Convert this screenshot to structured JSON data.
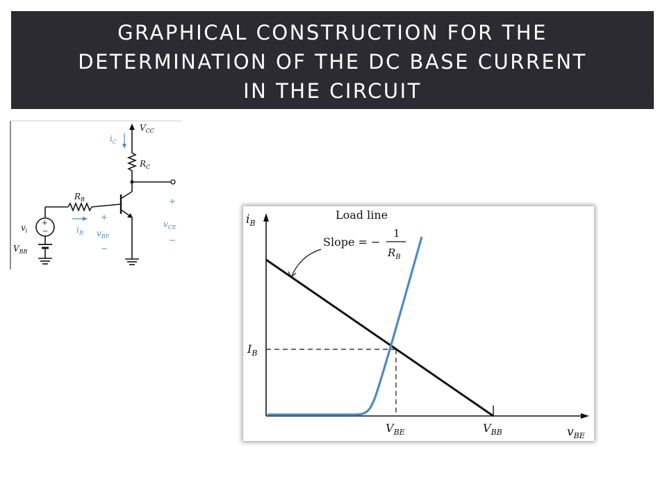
{
  "title": {
    "line1": "GRAPHICAL CONSTRUCTION FOR THE",
    "line2": "DETERMINATION OF THE DC BASE CURRENT",
    "line3": "IN THE CIRCUIT"
  },
  "colors": {
    "banner_bg": "#2b2b31",
    "banner_text": "#ffffff",
    "curve_blue": "#4a8cc4",
    "load_line": "#000000"
  },
  "circuit": {
    "vcc": {
      "main": "V",
      "sub": "CC"
    },
    "ic": {
      "main": "i",
      "sub": "C"
    },
    "rc": {
      "main": "R",
      "sub": "C"
    },
    "rb": {
      "main": "R",
      "sub": "B"
    },
    "ib": {
      "main": "i",
      "sub": "B"
    },
    "vi": {
      "main": "v",
      "sub": "i"
    },
    "vbb": {
      "main": "V",
      "sub": "BB"
    },
    "vbe": {
      "main": "v",
      "sub": "BE"
    },
    "vce": {
      "main": "v",
      "sub": "CE"
    },
    "plus": "+",
    "minus": "−"
  },
  "graph": {
    "y_axis": {
      "main": "i",
      "sub": "B"
    },
    "x_axis": {
      "main": "v",
      "sub": "BE"
    },
    "load_line_label": "Load line",
    "slope_text": "Slope = −",
    "slope_num": "1",
    "slope_den": {
      "main": "R",
      "sub": "B"
    },
    "ib_label": {
      "main": "I",
      "sub": "B"
    },
    "vbe_label": {
      "main": "V",
      "sub": "BE"
    },
    "vbb_label": {
      "main": "V",
      "sub": "BB"
    }
  }
}
